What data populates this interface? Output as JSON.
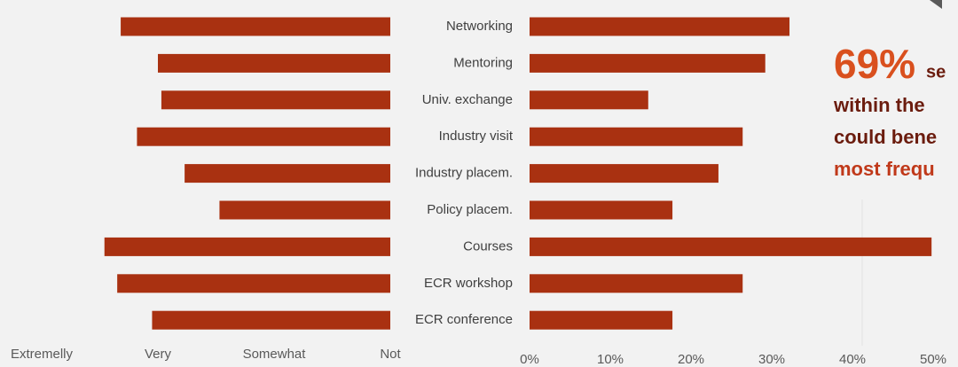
{
  "chart_data": [
    {
      "type": "bar",
      "orientation": "horizontal",
      "x_reversed": true,
      "categories": [
        "Networking",
        "Mentoring",
        "Univ. exchange",
        "Industry visit",
        "Industry placem.",
        "Policy placem.",
        "Courses",
        "ECR workshop",
        "ECR conference"
      ],
      "values": [
        2.32,
        2.0,
        1.97,
        2.18,
        1.77,
        1.47,
        2.46,
        2.35,
        2.05
      ],
      "color": "#a93111",
      "xlim": [
        0,
        3
      ],
      "xticks": [
        {
          "value": 3,
          "label": "Extremelly"
        },
        {
          "value": 2,
          "label": "Very"
        },
        {
          "value": 1,
          "label": "Somewhat"
        },
        {
          "value": 0,
          "label": "Not"
        }
      ]
    },
    {
      "type": "bar",
      "orientation": "horizontal",
      "values": [
        32.2,
        29.2,
        14.7,
        26.4,
        23.4,
        17.7,
        49.8,
        26.4,
        17.7
      ],
      "color": "#a93111",
      "xlim": [
        0,
        50
      ],
      "xticks": [
        {
          "value": 0,
          "label": "0%"
        },
        {
          "value": 10,
          "label": "10%"
        },
        {
          "value": 20,
          "label": "20%"
        },
        {
          "value": 30,
          "label": "30%"
        },
        {
          "value": 40,
          "label": "40%"
        },
        {
          "value": 50,
          "label": "50%"
        }
      ]
    }
  ],
  "annotation": {
    "highlight": "69%",
    "lines": [
      "se",
      "within the",
      "could bene",
      "most frequ"
    ]
  }
}
